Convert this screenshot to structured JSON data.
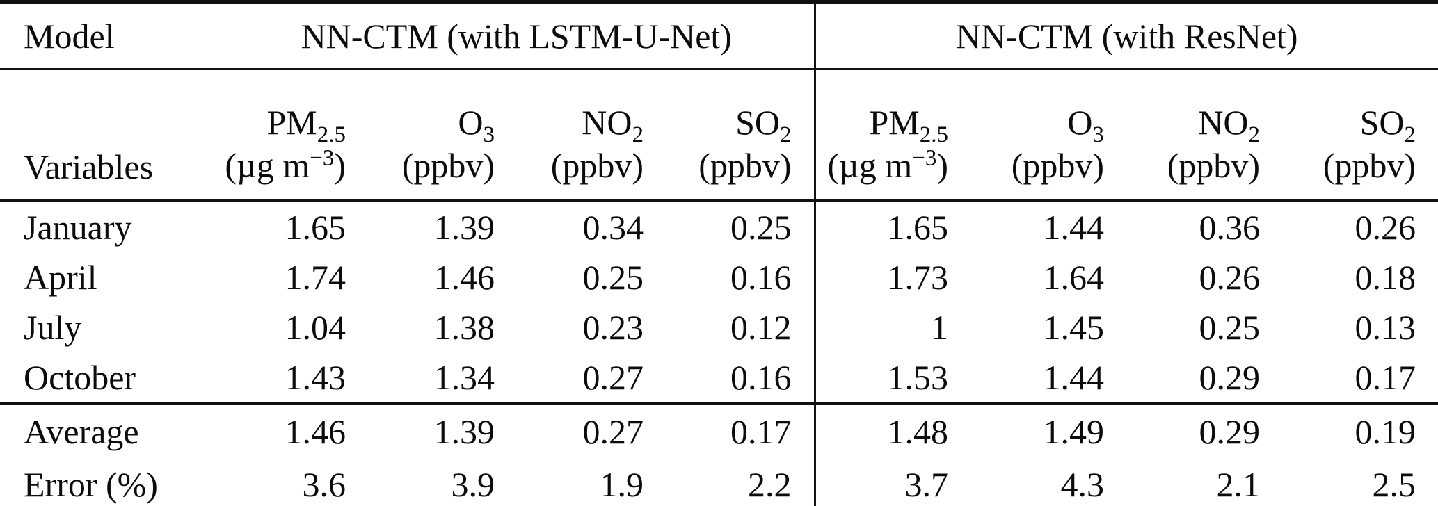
{
  "colors": {
    "text": "#0c0c0c",
    "rule": "#111111",
    "background": "#ffffff"
  },
  "chart_data": {
    "type": "table",
    "corner_labels": {
      "model": "Model",
      "variables": "Variables"
    },
    "groups": [
      {
        "label": "NN-CTM (with LSTM-U-Net)"
      },
      {
        "label": "NN-CTM (with ResNet)"
      }
    ],
    "columns": [
      {
        "species": "PM",
        "subscript": "2.5",
        "unit_pre": "(µg m",
        "unit_sup": "−3",
        "unit_post": ")"
      },
      {
        "species": "O",
        "subscript": "3",
        "unit_pre": "(ppbv)",
        "unit_sup": "",
        "unit_post": ""
      },
      {
        "species": "NO",
        "subscript": "2",
        "unit_pre": "(ppbv)",
        "unit_sup": "",
        "unit_post": ""
      },
      {
        "species": "SO",
        "subscript": "2",
        "unit_pre": "(ppbv)",
        "unit_sup": "",
        "unit_post": ""
      },
      {
        "species": "PM",
        "subscript": "2.5",
        "unit_pre": "(µg m",
        "unit_sup": "−3",
        "unit_post": ")"
      },
      {
        "species": "O",
        "subscript": "3",
        "unit_pre": "(ppbv)",
        "unit_sup": "",
        "unit_post": ""
      },
      {
        "species": "NO",
        "subscript": "2",
        "unit_pre": "(ppbv)",
        "unit_sup": "",
        "unit_post": ""
      },
      {
        "species": "SO",
        "subscript": "2",
        "unit_pre": "(ppbv)",
        "unit_sup": "",
        "unit_post": ""
      }
    ],
    "month_rows": [
      {
        "label": "January",
        "values": [
          "1.65",
          "1.39",
          "0.34",
          "0.25",
          "1.65",
          "1.44",
          "0.36",
          "0.26"
        ]
      },
      {
        "label": "April",
        "values": [
          "1.74",
          "1.46",
          "0.25",
          "0.16",
          "1.73",
          "1.64",
          "0.26",
          "0.18"
        ]
      },
      {
        "label": "July",
        "values": [
          "1.04",
          "1.38",
          "0.23",
          "0.12",
          "1",
          "1.45",
          "0.25",
          "0.13"
        ]
      },
      {
        "label": "October",
        "values": [
          "1.43",
          "1.34",
          "0.27",
          "0.16",
          "1.53",
          "1.44",
          "0.29",
          "0.17"
        ]
      }
    ],
    "summary_rows": [
      {
        "label": "Average",
        "values": [
          "1.46",
          "1.39",
          "0.27",
          "0.17",
          "1.48",
          "1.49",
          "0.29",
          "0.19"
        ]
      },
      {
        "label": "Error (%)",
        "values": [
          "3.6",
          "3.9",
          "1.9",
          "2.2",
          "3.7",
          "4.3",
          "2.1",
          "2.5"
        ]
      }
    ]
  }
}
